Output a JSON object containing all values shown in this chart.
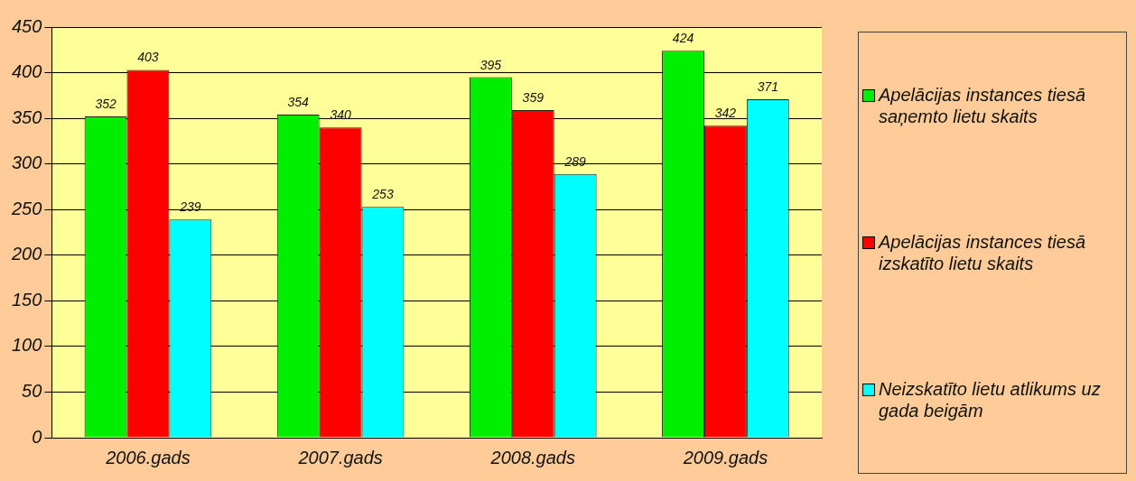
{
  "chart_data": {
    "type": "bar",
    "categories": [
      "2006.gads",
      "2007.gads",
      "2008.gads",
      "2009.gads"
    ],
    "series": [
      {
        "name": "Apelācijas instances tiesā saņemto lietu skaits",
        "color": "#00ee00",
        "values": [
          352,
          354,
          395,
          424
        ]
      },
      {
        "name": "Apelācijas instances tiesā izskatīto lietu skaits",
        "color": "#ff0000",
        "values": [
          403,
          340,
          359,
          342
        ]
      },
      {
        "name": "Neizskatīto lietu atlikums uz gada beigām",
        "color": "#00ffff",
        "values": [
          239,
          253,
          289,
          371
        ]
      }
    ],
    "ylim": [
      0,
      450
    ],
    "yticks": [
      0,
      50,
      100,
      150,
      200,
      250,
      300,
      350,
      400,
      450
    ],
    "grid": "y",
    "legend": "right",
    "data_labels": true
  }
}
